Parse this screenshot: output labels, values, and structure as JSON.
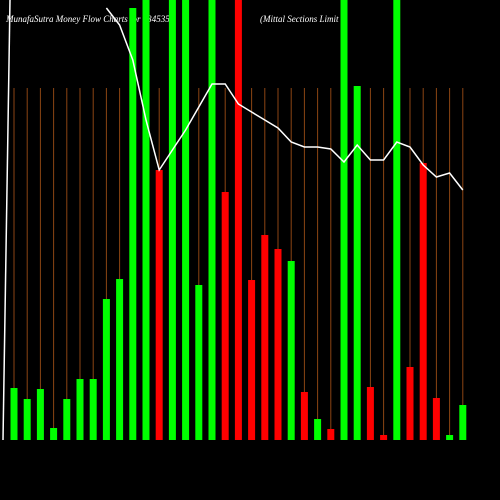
{
  "chart_data": {
    "type": "bar",
    "title": "MunafaSutra  Money Flow  Charts for 534535",
    "subtitle": "(Mittal Sections Limit",
    "categories": [
      null,
      null,
      null,
      null,
      null,
      null,
      null,
      null,
      null,
      null,
      null,
      null,
      null,
      null,
      null,
      null,
      null,
      null,
      null,
      null,
      null,
      null,
      null,
      null,
      null,
      null,
      null,
      null,
      null,
      null,
      null,
      null,
      null,
      null,
      null
    ],
    "values": [
      52,
      41,
      51,
      12,
      41,
      61,
      61,
      141,
      161,
      432,
      440,
      270,
      440,
      440,
      155,
      440,
      248,
      440,
      160,
      205,
      191,
      179,
      48,
      21,
      11,
      440,
      354,
      53,
      5,
      440,
      73,
      277,
      42,
      5,
      35
    ],
    "colors": [
      "#00ff00",
      "#00ff00",
      "#00ff00",
      "#00ff00",
      "#00ff00",
      "#00ff00",
      "#00ff00",
      "#00ff00",
      "#00ff00",
      "#00ff00",
      "#00ff00",
      "#ff0000",
      "#00ff00",
      "#00ff00",
      "#00ff00",
      "#00ff00",
      "#ff0000",
      "#ff0000",
      "#ff0000",
      "#ff0000",
      "#ff0000",
      "#00ff00",
      "#ff0000",
      "#00ff00",
      "#ff0000",
      "#00ff00",
      "#00ff00",
      "#ff0000",
      "#ff0000",
      "#00ff00",
      "#ff0000",
      "#ff0000",
      "#ff0000",
      "#00ff00",
      "#00ff00"
    ],
    "line": {
      "color": "#ffffff",
      "values": [
        null,
        null,
        null,
        null,
        null,
        null,
        null,
        432,
        415,
        380,
        320,
        270,
        290,
        310,
        333,
        356,
        356,
        336,
        328,
        320,
        312,
        298,
        293,
        293,
        291,
        278,
        295,
        280,
        280,
        298,
        293,
        275,
        263,
        267,
        250
      ]
    },
    "ylim": [
      0,
      440
    ],
    "grid_color": "#8b4513"
  }
}
